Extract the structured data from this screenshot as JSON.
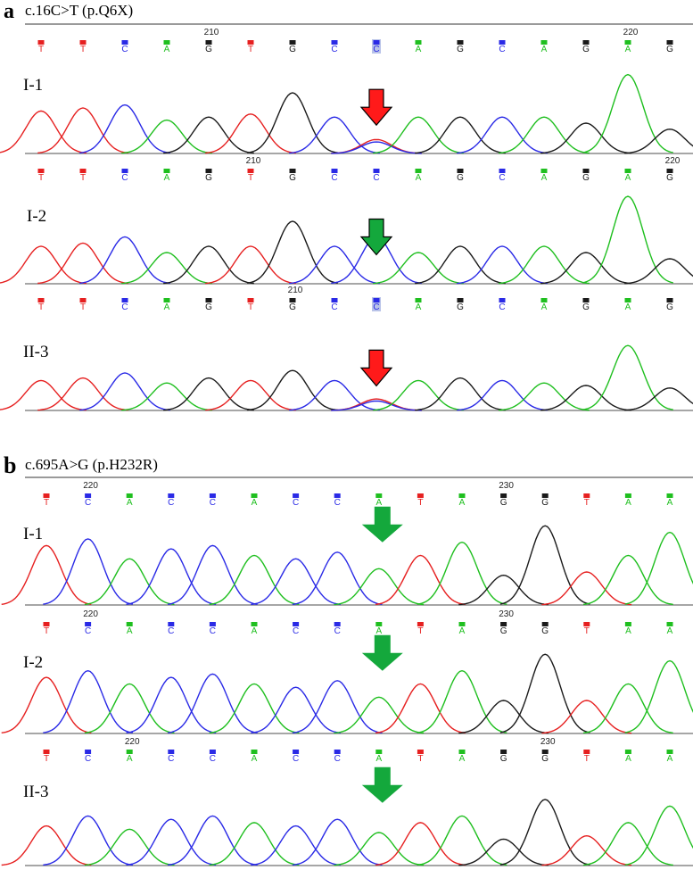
{
  "colors": {
    "A": "#1fbf1f",
    "C": "#2a2ae6",
    "G": "#1a1a1a",
    "T": "#e62020",
    "arrow_red": "#ff1a1a",
    "arrow_green": "#14a83c"
  },
  "panels": [
    {
      "letter": "a",
      "title": "c.16C>T (p.Q6X)",
      "tracks": [
        {
          "label": "I-1",
          "bases": [
            "T",
            "T",
            "C",
            "A",
            "G",
            "T",
            "G",
            "C",
            "C",
            "A",
            "G",
            "C",
            "A",
            "G",
            "A",
            "G"
          ],
          "marker_positions": [
            {
              "index": 4,
              "number": "210"
            },
            {
              "index": 14,
              "number": "220"
            }
          ],
          "peak_heights": [
            0.7,
            0.75,
            0.8,
            0.55,
            0.6,
            0.65,
            1.0,
            0.6,
            0.2,
            0.6,
            0.6,
            0.6,
            0.6,
            0.5,
            1.3,
            0.4
          ],
          "heterozygous_index": 8,
          "arrow": {
            "index": 8,
            "color": "red"
          }
        },
        {
          "label": "I-2",
          "bases": [
            "T",
            "T",
            "C",
            "A",
            "G",
            "T",
            "G",
            "C",
            "C",
            "A",
            "G",
            "C",
            "A",
            "G",
            "A",
            "G"
          ],
          "marker_positions": [
            {
              "index": 5,
              "number": "210"
            },
            {
              "index": 15,
              "number": "220"
            }
          ],
          "peak_heights": [
            0.6,
            0.65,
            0.75,
            0.5,
            0.6,
            0.6,
            1.0,
            0.6,
            0.75,
            0.5,
            0.6,
            0.6,
            0.6,
            0.5,
            1.4,
            0.4
          ],
          "heterozygous_index": null,
          "arrow": {
            "index": 8,
            "color": "green"
          }
        },
        {
          "label": "II-3",
          "bases": [
            "T",
            "T",
            "C",
            "A",
            "G",
            "T",
            "G",
            "C",
            "C",
            "A",
            "G",
            "C",
            "A",
            "G",
            "A",
            "G"
          ],
          "marker_positions": [
            {
              "index": 6,
              "number": "210"
            }
          ],
          "peak_heights": [
            0.6,
            0.65,
            0.75,
            0.55,
            0.65,
            0.6,
            0.8,
            0.6,
            0.2,
            0.6,
            0.65,
            0.6,
            0.55,
            0.5,
            1.3,
            0.45
          ],
          "heterozygous_index": 8,
          "arrow": {
            "index": 8,
            "color": "red"
          }
        }
      ]
    },
    {
      "letter": "b",
      "title": "c.695A>G (p.H232R)",
      "tracks": [
        {
          "label": "I-1",
          "bases": [
            "T",
            "C",
            "A",
            "C",
            "C",
            "A",
            "C",
            "C",
            "A",
            "T",
            "A",
            "G",
            "G",
            "T",
            "A",
            "A"
          ],
          "marker_positions": [
            {
              "index": 1,
              "number": "220"
            },
            {
              "index": 11,
              "number": "230"
            }
          ],
          "peak_heights": [
            0.9,
            1.0,
            0.7,
            0.85,
            0.9,
            0.75,
            0.7,
            0.8,
            0.55,
            0.75,
            0.95,
            0.45,
            1.2,
            0.5,
            0.75,
            1.1
          ],
          "heterozygous_index": null,
          "arrow": {
            "index": 8,
            "color": "green"
          }
        },
        {
          "label": "I-2",
          "bases": [
            "T",
            "C",
            "A",
            "C",
            "C",
            "A",
            "C",
            "C",
            "A",
            "T",
            "A",
            "G",
            "G",
            "T",
            "A",
            "A"
          ],
          "marker_positions": [
            {
              "index": 1,
              "number": "220"
            },
            {
              "index": 11,
              "number": "230"
            }
          ],
          "peak_heights": [
            0.85,
            0.95,
            0.75,
            0.85,
            0.9,
            0.75,
            0.7,
            0.8,
            0.55,
            0.75,
            0.95,
            0.5,
            1.2,
            0.5,
            0.75,
            1.1
          ],
          "heterozygous_index": null,
          "arrow": {
            "index": 8,
            "color": "green"
          }
        },
        {
          "label": "II-3",
          "bases": [
            "T",
            "C",
            "A",
            "C",
            "C",
            "A",
            "C",
            "C",
            "A",
            "T",
            "A",
            "G",
            "G",
            "T",
            "A",
            "A"
          ],
          "marker_positions": [
            {
              "index": 2,
              "number": "220"
            },
            {
              "index": 12,
              "number": "230"
            }
          ],
          "peak_heights": [
            0.6,
            0.75,
            0.55,
            0.7,
            0.75,
            0.65,
            0.6,
            0.7,
            0.5,
            0.65,
            0.75,
            0.4,
            1.0,
            0.45,
            0.65,
            0.9
          ],
          "heterozygous_index": null,
          "arrow": {
            "index": 8,
            "color": "green"
          }
        }
      ]
    }
  ]
}
